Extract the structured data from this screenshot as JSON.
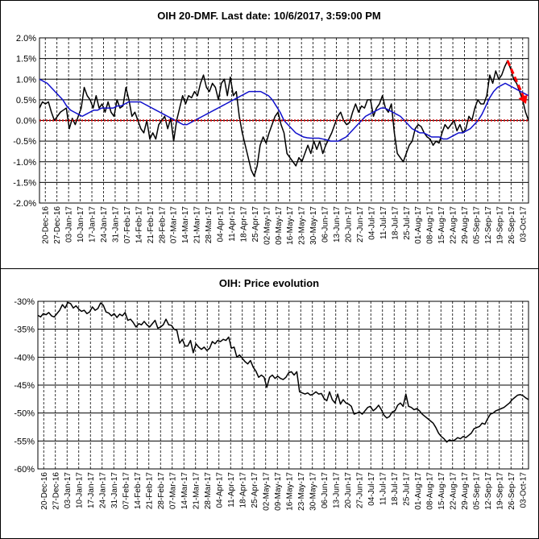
{
  "chart_data": [
    {
      "type": "line",
      "title": "OIH 20-DMF. Last date: 10/6/2017, 3:59:00 PM",
      "ylim": [
        -2.0,
        2.0
      ],
      "yticks": [
        "2.0%",
        "1.5%",
        "1.0%",
        "0.5%",
        "0.0%",
        "-0.5%",
        "-1.0%",
        "-1.5%",
        "-2.0%"
      ],
      "yvalues": [
        2.0,
        1.5,
        1.0,
        0.5,
        0.0,
        -0.5,
        -1.0,
        -1.5,
        -2.0
      ],
      "xticks": [
        "20-Dec-16",
        "27-Dec-16",
        "03-Jan-17",
        "10-Jan-17",
        "17-Jan-17",
        "24-Jan-17",
        "31-Jan-17",
        "07-Feb-17",
        "14-Feb-17",
        "21-Feb-17",
        "28-Feb-17",
        "07-Mar-17",
        "14-Mar-17",
        "21-Mar-17",
        "28-Mar-17",
        "04-Apr-17",
        "11-Apr-17",
        "18-Apr-17",
        "25-Apr-17",
        "02-May-17",
        "09-May-17",
        "16-May-17",
        "23-May-17",
        "30-May-17",
        "06-Jun-17",
        "13-Jun-17",
        "20-Jun-17",
        "27-Jun-17",
        "04-Jul-17",
        "11-Jul-17",
        "18-Jul-17",
        "25-Jul-17",
        "01-Aug-17",
        "08-Aug-17",
        "15-Aug-17",
        "22-Aug-17",
        "29-Aug-17",
        "05-Sep-17",
        "12-Sep-17",
        "19-Sep-17",
        "26-Sep-17",
        "03-Oct-17"
      ],
      "grid": true,
      "series": [
        {
          "color": "#000000",
          "values": [
            0.3,
            0.45,
            0.4,
            0.45,
            0.2,
            0.0,
            0.1,
            0.2,
            0.25,
            0.3,
            -0.2,
            0.05,
            -0.1,
            0.1,
            0.3,
            0.8,
            0.6,
            0.5,
            0.3,
            0.6,
            0.3,
            0.4,
            0.2,
            0.45,
            0.2,
            0.1,
            0.5,
            0.3,
            0.35,
            0.8,
            0.5,
            0.1,
            0.2,
            0.0,
            -0.2,
            -0.3,
            0.0,
            -0.45,
            -0.3,
            -0.45,
            -0.1,
            0.0,
            0.1,
            -0.2,
            0.05,
            -0.5,
            0.0,
            0.3,
            0.6,
            0.4,
            0.6,
            0.55,
            0.7,
            0.6,
            0.9,
            1.1,
            0.8,
            0.7,
            0.9,
            0.8,
            0.5,
            0.9,
            1.0,
            0.6,
            1.05,
            0.6,
            0.7,
            0.1,
            -0.3,
            -0.6,
            -0.9,
            -1.2,
            -1.35,
            -1.1,
            -0.6,
            -0.4,
            -0.55,
            -0.3,
            -0.1,
            0.1,
            0.2,
            -0.1,
            -0.3,
            -0.8,
            -0.9,
            -1.0,
            -1.1,
            -0.9,
            -1.0,
            -0.8,
            -0.6,
            -0.8,
            -0.5,
            -0.7,
            -0.5,
            -0.8,
            -0.6,
            -0.45,
            -0.3,
            -0.1,
            0.1,
            0.2,
            0.0,
            -0.1,
            -0.05,
            0.2,
            0.4,
            0.2,
            0.35,
            0.3,
            0.5,
            0.5,
            0.1,
            0.3,
            0.4,
            0.6,
            0.3,
            0.2,
            0.4,
            -0.3,
            -0.8,
            -0.9,
            -1.0,
            -0.8,
            -0.6,
            -0.5,
            -0.2,
            -0.1,
            -0.15,
            -0.3,
            -0.4,
            -0.45,
            -0.6,
            -0.5,
            -0.55,
            -0.3,
            -0.1,
            -0.2,
            -0.1,
            0.0,
            -0.25,
            -0.1,
            -0.3,
            -0.2,
            0.1,
            0.0,
            0.3,
            0.5,
            0.4,
            0.4,
            0.6,
            1.1,
            0.9,
            1.2,
            1.0,
            1.1,
            1.3,
            1.45,
            1.25,
            1.0,
            0.9,
            0.7,
            0.5,
            0.2,
            0.0
          ]
        },
        {
          "color": "#1010cc",
          "values": [
            1.0,
            0.95,
            0.9,
            0.8,
            0.7,
            0.6,
            0.5,
            0.35,
            0.25,
            0.2,
            0.15,
            0.1,
            0.15,
            0.2,
            0.25,
            0.25,
            0.3,
            0.3,
            0.3,
            0.3,
            0.35,
            0.35,
            0.4,
            0.45,
            0.45,
            0.45,
            0.45,
            0.4,
            0.35,
            0.3,
            0.25,
            0.2,
            0.15,
            0.1,
            0.05,
            0.0,
            -0.05,
            -0.1,
            -0.1,
            -0.05,
            0.0,
            0.05,
            0.1,
            0.15,
            0.2,
            0.25,
            0.3,
            0.35,
            0.4,
            0.45,
            0.5,
            0.55,
            0.6,
            0.65,
            0.7,
            0.7,
            0.7,
            0.7,
            0.65,
            0.6,
            0.5,
            0.35,
            0.2,
            0.0,
            -0.1,
            -0.2,
            -0.3,
            -0.35,
            -0.4,
            -0.42,
            -0.43,
            -0.43,
            -0.43,
            -0.45,
            -0.47,
            -0.5,
            -0.5,
            -0.5,
            -0.45,
            -0.4,
            -0.3,
            -0.2,
            -0.1,
            0.0,
            0.1,
            0.15,
            0.2,
            0.25,
            0.3,
            0.3,
            0.25,
            0.2,
            0.15,
            0.1,
            0.0,
            -0.1,
            -0.2,
            -0.25,
            -0.3,
            -0.3,
            -0.35,
            -0.4,
            -0.4,
            -0.4,
            -0.45,
            -0.45,
            -0.4,
            -0.35,
            -0.3,
            -0.3,
            -0.25,
            -0.2,
            -0.1,
            0.0,
            0.15,
            0.35,
            0.55,
            0.7,
            0.8,
            0.85,
            0.9,
            0.85,
            0.8,
            0.75,
            0.7,
            0.65,
            0.6
          ]
        },
        {
          "color": "#cc0000",
          "dashed": true,
          "values": [
            0.0,
            0.0
          ]
        }
      ],
      "annotations": [
        {
          "type": "arrow",
          "color": "#ff0000",
          "from": [
            1.45
          ],
          "to": [
            0.4
          ]
        }
      ]
    },
    {
      "type": "line",
      "title": "OIH: Price evolution",
      "ylim": [
        -60,
        -30
      ],
      "yticks": [
        "-30%",
        "-35%",
        "-40%",
        "-45%",
        "-50%",
        "-55%",
        "-60%"
      ],
      "yvalues": [
        -30,
        -35,
        -40,
        -45,
        -50,
        -55,
        -60
      ],
      "xticks": [
        "20-Dec-16",
        "27-Dec-16",
        "03-Jan-17",
        "10-Jan-17",
        "17-Jan-17",
        "24-Jan-17",
        "31-Jan-17",
        "07-Feb-17",
        "14-Feb-17",
        "21-Feb-17",
        "28-Feb-17",
        "07-Mar-17",
        "14-Mar-17",
        "21-Mar-17",
        "28-Mar-17",
        "04-Apr-17",
        "11-Apr-17",
        "18-Apr-17",
        "25-Apr-17",
        "02-May-17",
        "09-May-17",
        "16-May-17",
        "23-May-17",
        "30-May-17",
        "06-Jun-17",
        "13-Jun-17",
        "20-Jun-17",
        "27-Jun-17",
        "04-Jul-17",
        "11-Jul-17",
        "18-Jul-17",
        "25-Jul-17",
        "01-Aug-17",
        "08-Aug-17",
        "15-Aug-17",
        "22-Aug-17",
        "29-Aug-17",
        "05-Sep-17",
        "12-Sep-17",
        "19-Sep-17",
        "26-Sep-17",
        "03-Oct-17"
      ],
      "grid": true,
      "series": [
        {
          "color": "#000000",
          "values": [
            -32.5,
            -32.8,
            -32.2,
            -32.4,
            -32.0,
            -32.6,
            -32.8,
            -32.2,
            -31.6,
            -30.6,
            -31.2,
            -30.2,
            -30.4,
            -31.2,
            -30.8,
            -31.4,
            -31.8,
            -31.6,
            -32.2,
            -31.9,
            -31.0,
            -31.6,
            -31.3,
            -30.3,
            -30.7,
            -31.9,
            -32.1,
            -32.6,
            -32.2,
            -32.9,
            -32.3,
            -32.6,
            -32.0,
            -33.4,
            -33.2,
            -33.8,
            -34.6,
            -34.0,
            -34.2,
            -33.6,
            -34.2,
            -34.6,
            -34.0,
            -33.4,
            -34.8,
            -34.6,
            -34.2,
            -33.2,
            -34.2,
            -34.3,
            -35.0,
            -35.2,
            -37.5,
            -36.8,
            -38.0,
            -38.0,
            -37.0,
            -39.2,
            -37.6,
            -38.2,
            -38.6,
            -38.2,
            -38.8,
            -38.4,
            -37.2,
            -37.6,
            -37.0,
            -37.2,
            -36.8,
            -37.0,
            -36.4,
            -38.4,
            -38.2,
            -40.0,
            -39.6,
            -40.2,
            -40.8,
            -41.2,
            -40.6,
            -41.8,
            -42.5,
            -43.6,
            -43.2,
            -43.6,
            -45.4,
            -43.6,
            -43.2,
            -43.8,
            -43.4,
            -43.8,
            -44.0,
            -43.6,
            -42.8,
            -42.6,
            -43.2,
            -42.6,
            -46.2,
            -46.4,
            -46.6,
            -46.4,
            -46.8,
            -46.6,
            -46.2,
            -46.6,
            -46.5,
            -47.4,
            -47.8,
            -46.2,
            -47.6,
            -48.2,
            -46.6,
            -48.4,
            -47.6,
            -48.2,
            -48.4,
            -48.8,
            -50.2,
            -50.0,
            -49.8,
            -50.2,
            -49.6,
            -49.0,
            -48.8,
            -49.6,
            -49.2,
            -48.6,
            -49.4,
            -50.4,
            -50.9,
            -50.6,
            -49.8,
            -49.6,
            -48.6,
            -48.2,
            -48.8,
            -46.6,
            -48.8,
            -49.0,
            -49.4,
            -49.2,
            -49.6,
            -50.2,
            -50.6,
            -51.0,
            -51.4,
            -51.8,
            -52.6,
            -53.6,
            -54.2,
            -54.6,
            -55.2,
            -54.8,
            -55.0,
            -54.8,
            -54.4,
            -54.6,
            -54.2,
            -54.4,
            -54.0,
            -53.6,
            -52.8,
            -52.6,
            -52.4,
            -51.8,
            -52.0,
            -51.0,
            -50.2,
            -50.0,
            -49.6,
            -49.4,
            -49.2,
            -49.0,
            -48.6,
            -48.2,
            -47.6,
            -47.2,
            -46.8,
            -46.7,
            -46.9,
            -47.3,
            -47.6
          ]
        }
      ]
    }
  ]
}
